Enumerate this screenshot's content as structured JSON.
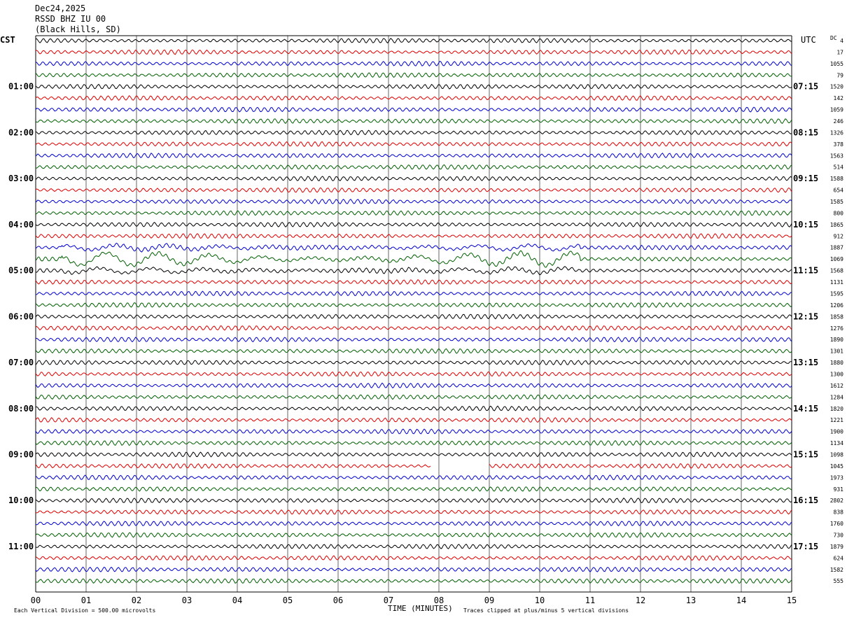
{
  "header": {
    "date": "Dec24,2025",
    "station": "RSSD BHZ IU 00",
    "location": "(Black Hills, SD)"
  },
  "left_axis_label": "CST",
  "right_axis_label": "UTC",
  "dc_label": "DC",
  "footer": {
    "scale": "Each Vertical Division =  500.00 microvolts",
    "xlabel": "TIME (MINUTES)",
    "clip_note": "Traces clipped at plus/minus 5 vertical divisions"
  },
  "colors": {
    "trace_cycle": [
      "#000000",
      "#e00000",
      "#0000d0",
      "#006000"
    ],
    "grid": "#000000",
    "text": "#000000"
  },
  "chart_data": {
    "type": "line",
    "subtype": "helicorder",
    "title": "RSSD BHZ IU 00",
    "xlabel": "TIME (MINUTES)",
    "xlim": [
      0,
      15
    ],
    "x_ticks": [
      "00",
      "01",
      "02",
      "03",
      "04",
      "05",
      "06",
      "07",
      "08",
      "09",
      "10",
      "11",
      "12",
      "13",
      "14",
      "15"
    ],
    "row_minutes": 15,
    "row_count": 48,
    "left_hour_labels": [
      "01:00",
      "02:00",
      "03:00",
      "04:00",
      "05:00",
      "06:00",
      "07:00",
      "08:00",
      "09:00",
      "10:00",
      "11:00"
    ],
    "right_hour_labels": [
      "07:15",
      "08:15",
      "09:15",
      "10:15",
      "11:15",
      "12:15",
      "13:15",
      "14:15",
      "15:15",
      "16:15",
      "17:15"
    ],
    "dc_offsets": [
      "4",
      "17",
      "1055",
      "79",
      "1520",
      "142",
      "1059",
      "246",
      "1326",
      "378",
      "1563",
      "514",
      "1588",
      "654",
      "1585",
      "800",
      "1865",
      "912",
      "1887",
      "1069",
      "1568",
      "1131",
      "1595",
      "1206",
      "1858",
      "1276",
      "1890",
      "1301",
      "1880",
      "1300",
      "1612",
      "1284",
      "1820",
      "1221",
      "1900",
      "1134",
      "1098",
      "1045",
      "1973",
      "931",
      "2802",
      "838",
      "1760",
      "730",
      "1879",
      "624",
      "1582",
      "555"
    ],
    "teleseism": {
      "rows": [
        18,
        19,
        20
      ],
      "start_min": 0.5,
      "end_min": 10.8
    },
    "data_gap": {
      "row": 37,
      "start_min": 7.85,
      "end_min": 9.0
    }
  }
}
